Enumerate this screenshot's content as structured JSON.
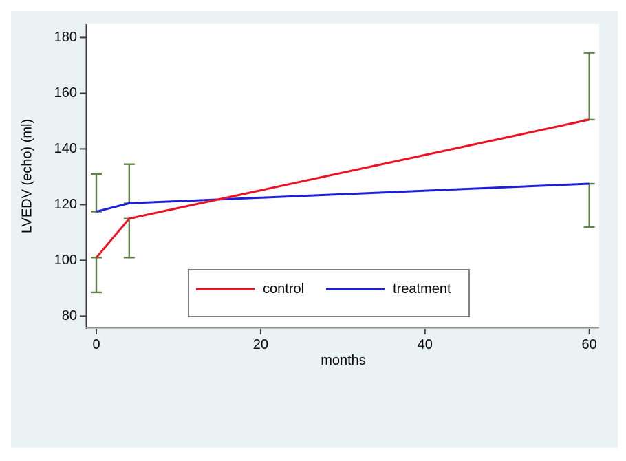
{
  "page": {
    "background": "#ffffff"
  },
  "figure": {
    "background": "#eaf2f3",
    "plot_background": "#ffffff"
  },
  "chart_data": {
    "type": "line",
    "title": "",
    "xlabel": "months",
    "ylabel": "LVEDV (echo) (ml)",
    "x_ticks": [
      0,
      20,
      40,
      60
    ],
    "y_ticks": [
      80,
      100,
      120,
      140,
      160,
      180
    ],
    "xlim": [
      -1.09,
      61.2
    ],
    "ylim": [
      75.9,
      184.8
    ],
    "grid": false,
    "legend_position": "bottom-center",
    "axis_color": "#404040",
    "x_axis_line_color": "#8f8f8f",
    "error_bar_color": "#5e8346",
    "series": [
      {
        "name": "control",
        "color": "#ed1122",
        "x": [
          0,
          4,
          60
        ],
        "y": [
          101,
          115,
          150.5
        ],
        "error_bars": [
          {
            "x": 0,
            "from": 101,
            "to": 88.5
          },
          {
            "x": 4,
            "from": 115,
            "to": 101
          },
          {
            "x": 60,
            "from": 150.5,
            "to": 174.5
          }
        ]
      },
      {
        "name": "treatment",
        "color": "#1f1fd9",
        "x": [
          0,
          4,
          60
        ],
        "y": [
          117.5,
          120.5,
          127.5
        ],
        "error_bars": [
          {
            "x": 0,
            "from": 117.5,
            "to": 131
          },
          {
            "x": 4,
            "from": 120.5,
            "to": 134.5
          },
          {
            "x": 60,
            "from": 127.5,
            "to": 112
          }
        ]
      }
    ]
  }
}
